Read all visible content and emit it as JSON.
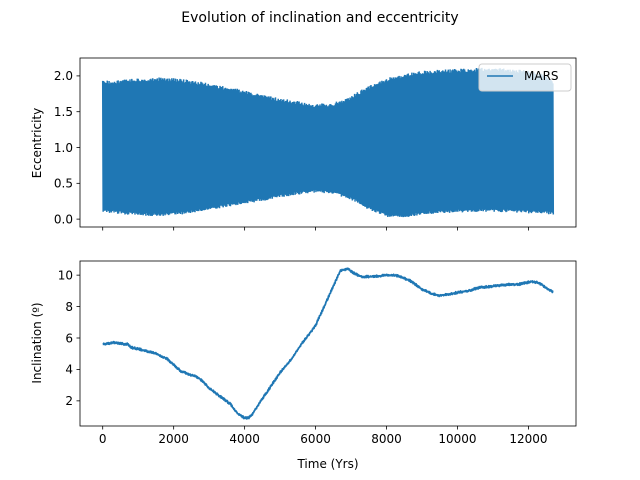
{
  "figure_title": "Evolution of inclination and eccentricity",
  "colors": {
    "series": "#1f77b4",
    "axes": "#000000",
    "legend_edge": "#cccccc"
  },
  "chart_data": [
    {
      "type": "line",
      "panel": "top",
      "title": "Evolution of inclination and eccentricity",
      "xlabel": "",
      "ylabel": "Eccentricity",
      "xlim": [
        -640,
        13340
      ],
      "ylim": [
        -0.11,
        2.25
      ],
      "xticks": [
        0,
        2000,
        4000,
        6000,
        8000,
        10000,
        12000
      ],
      "xtick_labels_visible": false,
      "yticks": [
        0.0,
        0.5,
        1.0,
        1.5,
        2.0
      ],
      "ytick_labels": [
        "0.0",
        "0.5",
        "1.0",
        "1.5",
        "2.0"
      ],
      "legend": {
        "location": "upper right",
        "entries": [
          "MARS"
        ]
      },
      "series": [
        {
          "name": "MARS",
          "style": "rapidly oscillating band between lower and upper envelopes",
          "x": [
            0,
            500,
            1000,
            1500,
            2000,
            2500,
            3000,
            3500,
            4000,
            4500,
            5000,
            5500,
            6000,
            6500,
            7000,
            7500,
            8000,
            8500,
            9000,
            9500,
            10000,
            10500,
            11000,
            11500,
            12000,
            12500,
            12700
          ],
          "upper": [
            1.93,
            1.95,
            1.97,
            1.98,
            1.97,
            1.94,
            1.9,
            1.85,
            1.8,
            1.74,
            1.69,
            1.65,
            1.61,
            1.63,
            1.72,
            1.87,
            1.97,
            2.03,
            2.07,
            2.09,
            2.1,
            2.11,
            2.12,
            2.1,
            2.08,
            2.02,
            1.92
          ],
          "lower": [
            0.09,
            0.07,
            0.05,
            0.04,
            0.05,
            0.08,
            0.12,
            0.17,
            0.21,
            0.25,
            0.3,
            0.34,
            0.37,
            0.35,
            0.27,
            0.13,
            0.03,
            0.02,
            0.06,
            0.08,
            0.09,
            0.1,
            0.1,
            0.09,
            0.08,
            0.07,
            0.06
          ]
        }
      ]
    },
    {
      "type": "line",
      "panel": "bottom",
      "xlabel": "Time (Yrs)",
      "ylabel": "Inclination (º)",
      "xlim": [
        -640,
        13340
      ],
      "ylim": [
        0.4,
        10.9
      ],
      "xticks": [
        0,
        2000,
        4000,
        6000,
        8000,
        10000,
        12000
      ],
      "xtick_labels": [
        "0",
        "2000",
        "4000",
        "6000",
        "8000",
        "10000",
        "12000"
      ],
      "yticks": [
        2,
        4,
        6,
        8,
        10
      ],
      "ytick_labels": [
        "2",
        "4",
        "6",
        "8",
        "10"
      ],
      "series": [
        {
          "name": "MARS",
          "x": [
            0,
            300,
            700,
            800,
            1200,
            1500,
            1800,
            2000,
            2200,
            2500,
            2600,
            2800,
            3000,
            3300,
            3600,
            3800,
            4000,
            4100,
            4200,
            4400,
            4700,
            5000,
            5300,
            5600,
            6000,
            6200,
            6400,
            6600,
            6700,
            6900,
            7100,
            7300,
            7600,
            8000,
            8200,
            8400,
            8700,
            9000,
            9300,
            9500,
            9800,
            10000,
            10300,
            10600,
            11000,
            11400,
            11700,
            11900,
            12100,
            12300,
            12500,
            12700
          ],
          "values": [
            5.6,
            5.7,
            5.6,
            5.4,
            5.2,
            5.0,
            4.7,
            4.3,
            3.9,
            3.6,
            3.6,
            3.3,
            2.8,
            2.3,
            1.8,
            1.2,
            0.9,
            0.9,
            1.1,
            1.8,
            2.8,
            3.8,
            4.6,
            5.6,
            6.8,
            7.8,
            8.8,
            9.8,
            10.3,
            10.4,
            10.1,
            9.9,
            9.9,
            10.0,
            10.0,
            9.9,
            9.6,
            9.1,
            8.8,
            8.7,
            8.8,
            8.9,
            9.0,
            9.2,
            9.3,
            9.4,
            9.4,
            9.5,
            9.6,
            9.5,
            9.2,
            8.9
          ]
        }
      ]
    }
  ]
}
